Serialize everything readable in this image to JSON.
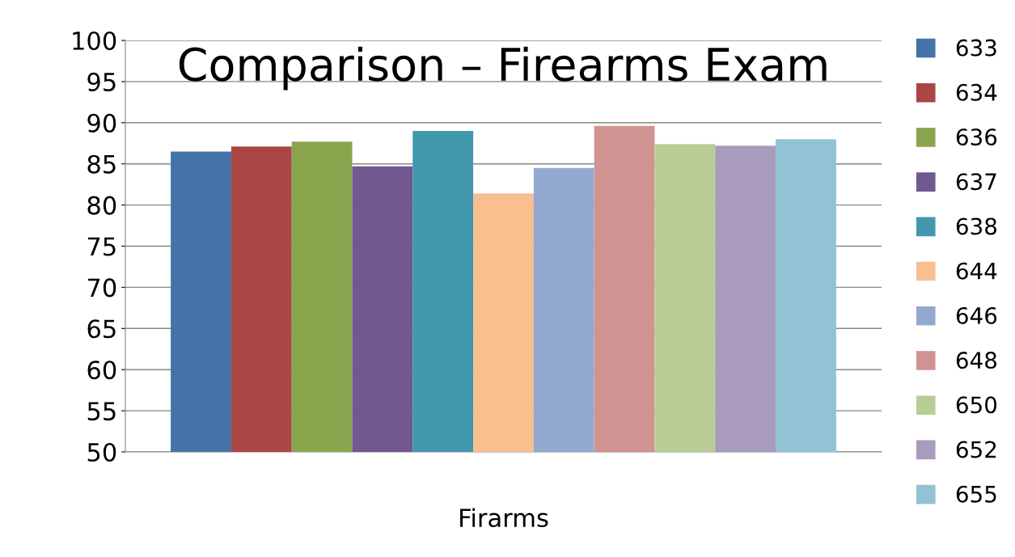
{
  "chart_data": {
    "type": "bar",
    "title": "Comparison – Firearms Exam",
    "categories": [
      "Firarms"
    ],
    "series": [
      {
        "name": "633",
        "color": "#4572a7",
        "values": [
          86.5
        ]
      },
      {
        "name": "634",
        "color": "#aa4643",
        "values": [
          87.1
        ]
      },
      {
        "name": "636",
        "color": "#89a54e",
        "values": [
          87.7
        ]
      },
      {
        "name": "637",
        "color": "#71588f",
        "values": [
          84.7
        ]
      },
      {
        "name": "638",
        "color": "#4198af",
        "values": [
          89.0
        ]
      },
      {
        "name": "644",
        "color": "#f9bf8f",
        "values": [
          81.4
        ]
      },
      {
        "name": "646",
        "color": "#93a9cf",
        "values": [
          84.5
        ]
      },
      {
        "name": "648",
        "color": "#d19392",
        "values": [
          89.6
        ]
      },
      {
        "name": "650",
        "color": "#b9cd96",
        "values": [
          87.4
        ]
      },
      {
        "name": "652",
        "color": "#a99bbd",
        "values": [
          87.2
        ]
      },
      {
        "name": "655",
        "color": "#92c3d4",
        "values": [
          88.0
        ]
      }
    ],
    "ylim": [
      50,
      100
    ],
    "yticks": [
      50,
      55,
      60,
      65,
      70,
      75,
      80,
      85,
      90,
      95,
      100
    ],
    "grid": "y",
    "legend": "right",
    "marker": "square"
  }
}
